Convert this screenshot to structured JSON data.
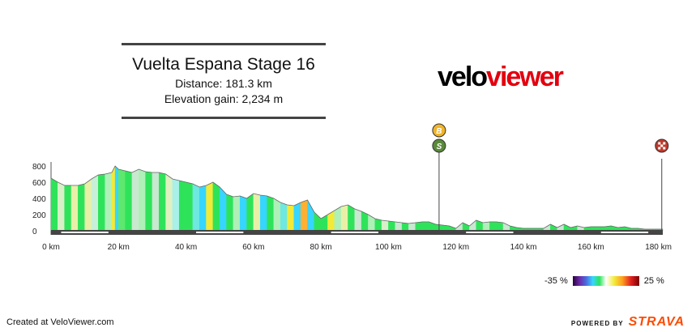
{
  "header": {
    "title": "Vuelta Espana Stage 16",
    "distance": "Distance: 181.3 km",
    "elevation": "Elevation gain: 2,234 m"
  },
  "logo": {
    "part1": "velo",
    "part2": "viewer"
  },
  "markers": [
    {
      "km": 115,
      "icons": [
        "B",
        "S"
      ],
      "colors": [
        "#f0b429",
        "#5a8a3a"
      ]
    },
    {
      "km": 181,
      "icons": [
        "finish"
      ],
      "colors": [
        "#c0392b"
      ]
    }
  ],
  "legend": {
    "min_label": "-35 %",
    "max_label": "25 %"
  },
  "footer": {
    "created": "Created at VeloViewer.com",
    "powered": "POWERED BY",
    "brand": "STRAVA"
  },
  "chart_data": {
    "type": "area",
    "xlabel": "",
    "ylabel": "",
    "xlim": [
      0,
      181.3
    ],
    "ylim": [
      -60,
      850
    ],
    "xticks": [
      "0 km",
      "20 km",
      "40 km",
      "60 km",
      "80 km",
      "100 km",
      "120 km",
      "140 km",
      "160 km",
      "180 km"
    ],
    "yticks": [
      "800",
      "600",
      "400",
      "200",
      "0"
    ],
    "x": [
      0,
      2,
      4,
      6,
      8,
      10,
      12,
      14,
      16,
      18,
      19,
      20,
      22,
      24,
      26,
      28,
      30,
      32,
      34,
      36,
      38,
      40,
      42,
      44,
      46,
      48,
      50,
      52,
      54,
      56,
      58,
      60,
      62,
      64,
      66,
      68,
      70,
      72,
      74,
      76,
      78,
      80,
      82,
      84,
      86,
      88,
      90,
      92,
      94,
      96,
      98,
      100,
      102,
      104,
      106,
      108,
      110,
      112,
      114,
      116,
      118,
      120,
      122,
      124,
      126,
      128,
      130,
      132,
      134,
      136,
      138,
      140,
      142,
      144,
      146,
      148,
      150,
      152,
      154,
      156,
      158,
      160,
      162,
      164,
      166,
      168,
      170,
      172,
      174,
      176,
      178,
      180,
      181.3
    ],
    "elevation": [
      650,
      600,
      560,
      560,
      560,
      580,
      640,
      690,
      700,
      720,
      800,
      760,
      740,
      720,
      760,
      730,
      720,
      720,
      700,
      640,
      620,
      600,
      580,
      540,
      560,
      600,
      540,
      450,
      420,
      430,
      400,
      460,
      440,
      430,
      400,
      350,
      320,
      310,
      350,
      380,
      230,
      150,
      200,
      250,
      300,
      320,
      270,
      240,
      200,
      150,
      130,
      120,
      110,
      100,
      90,
      100,
      110,
      110,
      80,
      70,
      60,
      30,
      100,
      60,
      130,
      100,
      110,
      110,
      100,
      60,
      40,
      30,
      30,
      30,
      30,
      80,
      40,
      80,
      40,
      60,
      40,
      50,
      50,
      50,
      60,
      40,
      50,
      30,
      30,
      20,
      20,
      20,
      20
    ],
    "gradient_colors": [
      "#2ee35a",
      "#d8f0c8",
      "#2ee35a",
      "#e8f0a8",
      "#2ee35a",
      "#e8f0a8",
      "#c8f0d8",
      "#2ee35a",
      "#aef0b8",
      "#f2ea38",
      "#36d6ff",
      "#5ee86e",
      "#2ee35a",
      "#c8e8d0",
      "#aef0b8",
      "#2ee35a",
      "#c8e8d0",
      "#2ee35a",
      "#e0f0c0",
      "#a8f0e8",
      "#2ee35a",
      "#2ee35a",
      "#6ee8e0",
      "#36d6ff",
      "#f2ea38",
      "#2ee35a",
      "#36d6ff",
      "#2ee35a",
      "#aef0b8",
      "#36d6ff",
      "#2ee35a",
      "#e8f0a8",
      "#36d6ff",
      "#2ee35a",
      "#aef0b8",
      "#6ee8e0",
      "#f2ea38",
      "#36d6ff",
      "#ffb030",
      "#36d6ff",
      "#2ee35a",
      "#2ee35a",
      "#f2ea38",
      "#aef0b8",
      "#e8f0a8",
      "#2ee35a",
      "#c8e8d0",
      "#2ee35a",
      "#aef0b8",
      "#2ee35a",
      "#d8f0c8",
      "#2ee35a",
      "#c8e8d0",
      "#2ee35a",
      "#c8e8d0",
      "#2ee35a",
      "#2ee35a",
      "#2ee35a",
      "#2ee35a",
      "#2ee35a",
      "#2ee35a",
      "#c8e8d0",
      "#2ee35a",
      "#c8e8d0",
      "#2ee35a",
      "#aef0b8",
      "#2ee35a",
      "#2ee35a",
      "#c8e8d0",
      "#2ee35a",
      "#2ee35a",
      "#2ee35a",
      "#2ee35a",
      "#2ee35a",
      "#c8e8d0",
      "#2ee35a",
      "#c8e8d0",
      "#2ee35a",
      "#2ee35a",
      "#c8e8d0",
      "#2ee35a",
      "#2ee35a",
      "#2ee35a",
      "#2ee35a",
      "#2ee35a",
      "#2ee35a",
      "#2ee35a",
      "#2ee35a",
      "#2ee35a",
      "#2ee35a",
      "#2ee35a",
      "#2ee35a"
    ]
  }
}
